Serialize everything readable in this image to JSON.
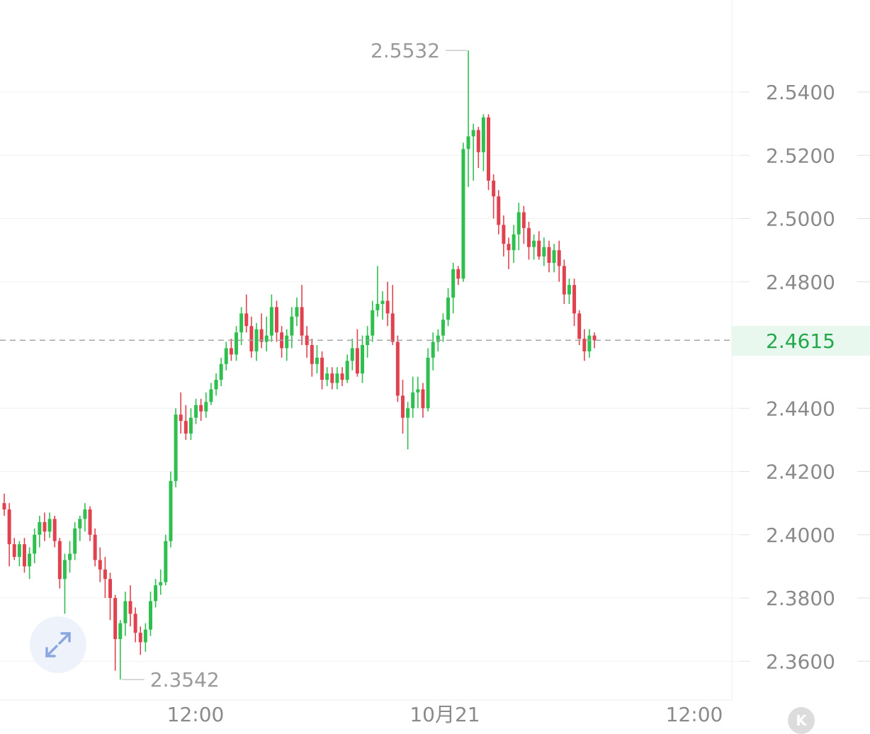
{
  "chart_data": {
    "type": "candlestick",
    "y_ticks": [
      "2.5400",
      "2.5200",
      "2.5000",
      "2.4800",
      "2.4400",
      "2.4200",
      "2.4000",
      "2.3800",
      "2.3600"
    ],
    "ylim": [
      2.35,
      2.556
    ],
    "x_ticks": [
      "12:00",
      "10月21",
      "12:00"
    ],
    "current_price": "2.4615",
    "high_label": "2.5532",
    "low_label": "2.3542",
    "colors": {
      "up": "#2fbf4f",
      "down": "#e0434f",
      "current_bg": "#e9f8ee",
      "current_text": "#22a84a"
    },
    "candles": [
      [
        2.41,
        2.413,
        2.406,
        2.408
      ],
      [
        2.408,
        2.41,
        2.39,
        2.397
      ],
      [
        2.397,
        2.399,
        2.392,
        2.393
      ],
      [
        2.393,
        2.398,
        2.39,
        2.397
      ],
      [
        2.397,
        2.399,
        2.388,
        2.39
      ],
      [
        2.39,
        2.396,
        2.386,
        2.394
      ],
      [
        2.394,
        2.402,
        2.391,
        2.4
      ],
      [
        2.4,
        2.406,
        2.396,
        2.404
      ],
      [
        2.404,
        2.407,
        2.398,
        2.401
      ],
      [
        2.401,
        2.407,
        2.399,
        2.405
      ],
      [
        2.405,
        2.406,
        2.396,
        2.398
      ],
      [
        2.398,
        2.399,
        2.383,
        2.386
      ],
      [
        2.386,
        2.394,
        2.375,
        2.392
      ],
      [
        2.392,
        2.398,
        2.388,
        2.394
      ],
      [
        2.394,
        2.404,
        2.392,
        2.402
      ],
      [
        2.402,
        2.406,
        2.398,
        2.405
      ],
      [
        2.405,
        2.41,
        2.401,
        2.408
      ],
      [
        2.408,
        2.409,
        2.398,
        2.4
      ],
      [
        2.4,
        2.402,
        2.39,
        2.392
      ],
      [
        2.392,
        2.396,
        2.385,
        2.389
      ],
      [
        2.389,
        2.393,
        2.38,
        2.386
      ],
      [
        2.386,
        2.388,
        2.373,
        2.38
      ],
      [
        2.38,
        2.381,
        2.357,
        2.367
      ],
      [
        2.367,
        2.373,
        2.3542,
        2.372
      ],
      [
        2.372,
        2.382,
        2.368,
        2.379
      ],
      [
        2.379,
        2.384,
        2.371,
        2.375
      ],
      [
        2.375,
        2.377,
        2.366,
        2.369
      ],
      [
        2.369,
        2.371,
        2.362,
        2.366
      ],
      [
        2.366,
        2.372,
        2.363,
        2.37
      ],
      [
        2.37,
        2.382,
        2.368,
        2.379
      ],
      [
        2.379,
        2.386,
        2.377,
        2.384
      ],
      [
        2.384,
        2.389,
        2.381,
        2.385
      ],
      [
        2.385,
        2.4,
        2.384,
        2.398
      ],
      [
        2.398,
        2.42,
        2.396,
        2.417
      ],
      [
        2.417,
        2.44,
        2.415,
        2.438
      ],
      [
        2.438,
        2.445,
        2.432,
        2.436
      ],
      [
        2.436,
        2.441,
        2.43,
        2.432
      ],
      [
        2.432,
        2.44,
        2.43,
        2.437
      ],
      [
        2.437,
        2.443,
        2.435,
        2.441
      ],
      [
        2.441,
        2.443,
        2.436,
        2.439
      ],
      [
        2.439,
        2.445,
        2.437,
        2.442
      ],
      [
        2.442,
        2.448,
        2.441,
        2.446
      ],
      [
        2.446,
        2.451,
        2.444,
        2.449
      ],
      [
        2.449,
        2.456,
        2.447,
        2.454
      ],
      [
        2.454,
        2.461,
        2.452,
        2.459
      ],
      [
        2.459,
        2.462,
        2.455,
        2.457
      ],
      [
        2.457,
        2.466,
        2.455,
        2.464
      ],
      [
        2.464,
        2.472,
        2.46,
        2.47
      ],
      [
        2.47,
        2.476,
        2.464,
        2.466
      ],
      [
        2.466,
        2.469,
        2.456,
        2.458
      ],
      [
        2.458,
        2.467,
        2.455,
        2.465
      ],
      [
        2.465,
        2.47,
        2.459,
        2.461
      ],
      [
        2.461,
        2.469,
        2.458,
        2.463
      ],
      [
        2.463,
        2.476,
        2.461,
        2.472
      ],
      [
        2.472,
        2.474,
        2.461,
        2.464
      ],
      [
        2.464,
        2.466,
        2.456,
        2.459
      ],
      [
        2.459,
        2.465,
        2.455,
        2.463
      ],
      [
        2.463,
        2.472,
        2.459,
        2.469
      ],
      [
        2.469,
        2.475,
        2.466,
        2.472
      ],
      [
        2.472,
        2.479,
        2.46,
        2.463
      ],
      [
        2.463,
        2.466,
        2.456,
        2.46
      ],
      [
        2.46,
        2.462,
        2.45,
        2.454
      ],
      [
        2.454,
        2.46,
        2.451,
        2.456
      ],
      [
        2.456,
        2.458,
        2.446,
        2.449
      ],
      [
        2.449,
        2.453,
        2.447,
        2.451
      ],
      [
        2.451,
        2.453,
        2.446,
        2.448
      ],
      [
        2.448,
        2.453,
        2.446,
        2.451
      ],
      [
        2.451,
        2.453,
        2.447,
        2.449
      ],
      [
        2.449,
        2.457,
        2.448,
        2.455
      ],
      [
        2.455,
        2.462,
        2.452,
        2.459
      ],
      [
        2.459,
        2.465,
        2.45,
        2.451
      ],
      [
        2.451,
        2.463,
        2.448,
        2.46
      ],
      [
        2.46,
        2.466,
        2.456,
        2.463
      ],
      [
        2.463,
        2.474,
        2.461,
        2.471
      ],
      [
        2.471,
        2.485,
        2.469,
        2.473
      ],
      [
        2.473,
        2.477,
        2.468,
        2.474
      ],
      [
        2.474,
        2.48,
        2.466,
        2.47
      ],
      [
        2.47,
        2.479,
        2.46,
        2.461
      ],
      [
        2.461,
        2.463,
        2.442,
        2.444
      ],
      [
        2.444,
        2.449,
        2.432,
        2.437
      ],
      [
        2.437,
        2.442,
        2.427,
        2.44
      ],
      [
        2.44,
        2.45,
        2.437,
        2.445
      ],
      [
        2.445,
        2.45,
        2.44,
        2.446
      ],
      [
        2.446,
        2.448,
        2.437,
        2.44
      ],
      [
        2.44,
        2.459,
        2.439,
        2.456
      ],
      [
        2.456,
        2.464,
        2.452,
        2.461
      ],
      [
        2.461,
        2.465,
        2.458,
        2.463
      ],
      [
        2.463,
        2.47,
        2.461,
        2.468
      ],
      [
        2.468,
        2.478,
        2.466,
        2.475
      ],
      [
        2.475,
        2.486,
        2.47,
        2.484
      ],
      [
        2.484,
        2.485,
        2.479,
        2.481
      ],
      [
        2.481,
        2.524,
        2.48,
        2.522
      ],
      [
        2.522,
        2.5532,
        2.51,
        2.526
      ],
      [
        2.526,
        2.53,
        2.512,
        2.528
      ],
      [
        2.528,
        2.529,
        2.516,
        2.521
      ],
      [
        2.521,
        2.533,
        2.515,
        2.532
      ],
      [
        2.532,
        2.533,
        2.509,
        2.512
      ],
      [
        2.512,
        2.514,
        2.5,
        2.507
      ],
      [
        2.507,
        2.509,
        2.495,
        2.498
      ],
      [
        2.498,
        2.501,
        2.488,
        2.492
      ],
      [
        2.492,
        2.494,
        2.484,
        2.49
      ],
      [
        2.49,
        2.498,
        2.486,
        2.495
      ],
      [
        2.495,
        2.505,
        2.49,
        2.502
      ],
      [
        2.502,
        2.504,
        2.492,
        2.497
      ],
      [
        2.497,
        2.499,
        2.487,
        2.491
      ],
      [
        2.491,
        2.495,
        2.487,
        2.493
      ],
      [
        2.493,
        2.496,
        2.487,
        2.488
      ],
      [
        2.488,
        2.494,
        2.485,
        2.491
      ],
      [
        2.491,
        2.493,
        2.483,
        2.486
      ],
      [
        2.486,
        2.492,
        2.483,
        2.49
      ],
      [
        2.49,
        2.493,
        2.48,
        2.485
      ],
      [
        2.485,
        2.487,
        2.473,
        2.476
      ],
      [
        2.476,
        2.481,
        2.473,
        2.479
      ],
      [
        2.479,
        2.481,
        2.466,
        2.47
      ],
      [
        2.47,
        2.471,
        2.46,
        2.462
      ],
      [
        2.462,
        2.465,
        2.455,
        2.458
      ],
      [
        2.458,
        2.465,
        2.456,
        2.463
      ],
      [
        2.463,
        2.464,
        2.459,
        2.4615
      ]
    ]
  },
  "icons": {
    "expand": "expand-arrows-icon",
    "kline": "k-logo-icon"
  },
  "k_button_label": "K"
}
